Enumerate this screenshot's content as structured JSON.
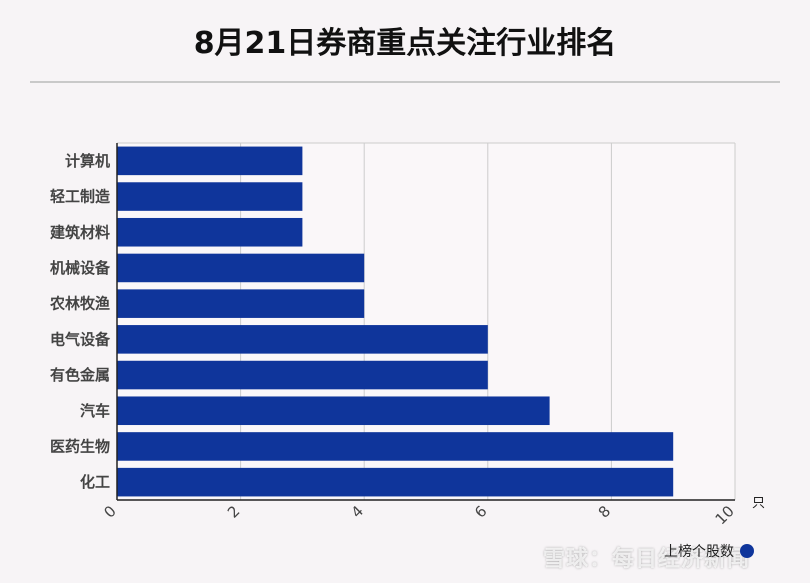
{
  "title": "8月21日券商重点关注行业排名",
  "unit": "只",
  "legend_label": "上榜个股数",
  "watermark": "雪球：每日经济新闻",
  "colors": {
    "bar": "#0f359b",
    "grid": "#cccccc",
    "axis": "#222222",
    "label": "#444444"
  },
  "chart_data": {
    "type": "bar",
    "orientation": "horizontal",
    "categories": [
      "计算机",
      "轻工制造",
      "建筑材料",
      "机械设备",
      "农林牧渔",
      "电气设备",
      "有色金属",
      "汽车",
      "医药生物",
      "化工"
    ],
    "series": [
      {
        "name": "上榜个股数",
        "values": [
          3,
          3,
          3,
          4,
          4,
          6,
          6,
          7,
          9,
          9
        ]
      }
    ],
    "xlim": [
      0,
      10
    ],
    "xticks": [
      0,
      2,
      4,
      6,
      8,
      10
    ],
    "xlabel": "只",
    "ylabel": "",
    "grid": true,
    "legend": "bottom-right"
  }
}
